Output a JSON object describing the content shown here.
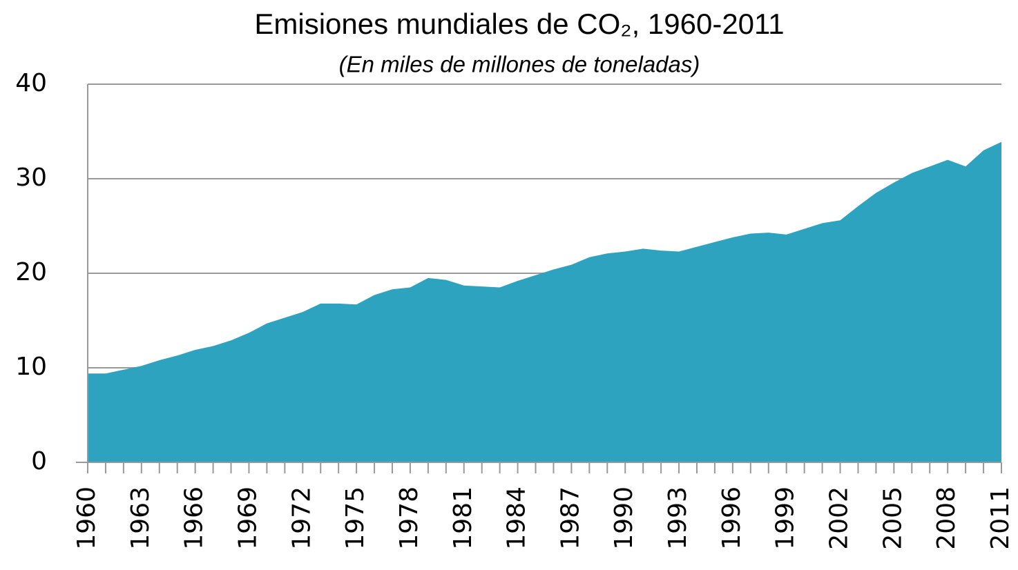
{
  "chart_data": {
    "type": "area",
    "title": "Emisiones mundiales de CO₂, 1960-2011",
    "subtitle": "(En miles de millones de toneladas)",
    "categories": [
      "1960",
      null,
      null,
      "1963",
      null,
      null,
      "1966",
      null,
      null,
      "1969",
      null,
      null,
      "1972",
      null,
      null,
      "1975",
      null,
      null,
      "1978",
      null,
      null,
      "1981",
      null,
      null,
      "1984",
      null,
      null,
      "1987",
      null,
      null,
      "1990",
      null,
      null,
      "1993",
      null,
      null,
      "1996",
      null,
      null,
      "1999",
      null,
      null,
      "2002",
      null,
      null,
      "2005",
      null,
      null,
      "2008",
      null,
      null,
      "2011"
    ],
    "values": [
      9.4,
      9.4,
      9.8,
      10.2,
      10.8,
      11.3,
      11.9,
      12.3,
      12.9,
      13.7,
      14.7,
      15.3,
      15.9,
      16.8,
      16.8,
      16.7,
      17.7,
      18.3,
      18.5,
      19.5,
      19.3,
      18.7,
      18.6,
      18.5,
      19.2,
      19.8,
      20.4,
      20.9,
      21.7,
      22.1,
      22.3,
      22.6,
      22.4,
      22.3,
      22.8,
      23.3,
      23.8,
      24.2,
      24.3,
      24.1,
      24.7,
      25.3,
      25.6,
      27.1,
      28.5,
      29.6,
      30.6,
      31.3,
      32.0,
      31.3,
      33.0,
      33.9
    ],
    "color": "#2ea3bf",
    "ylim": [
      0,
      40
    ],
    "yticks": [
      0,
      10,
      20,
      30,
      40
    ],
    "grid": true
  }
}
